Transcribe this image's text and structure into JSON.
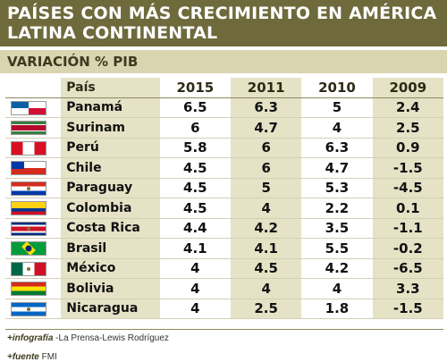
{
  "header": {
    "title_line1": "PAÍSES CON MÁS CRECIMIENTO EN AMÉRICA",
    "title_line2": "LATINA CONTINENTAL",
    "subtitle": "VARIACIÓN % PIB"
  },
  "table": {
    "columns": [
      "País",
      "2015",
      "2011",
      "2010",
      "2009"
    ],
    "rows": [
      {
        "country": "Panamá",
        "flag": "panama-flag",
        "v2015": "6.5",
        "v2011": "6.3",
        "v2010": "5",
        "v2009": "2.4"
      },
      {
        "country": "Surinam",
        "flag": "suriname-flag",
        "v2015": "6",
        "v2011": "4.7",
        "v2010": "4",
        "v2009": "2.5"
      },
      {
        "country": "Perú",
        "flag": "peru-flag",
        "v2015": "5.8",
        "v2011": "6",
        "v2010": "6.3",
        "v2009": "0.9"
      },
      {
        "country": "Chile",
        "flag": "chile-flag",
        "v2015": "4.5",
        "v2011": "6",
        "v2010": "4.7",
        "v2009": "-1.5"
      },
      {
        "country": "Paraguay",
        "flag": "paraguay-flag",
        "v2015": "4.5",
        "v2011": "5",
        "v2010": "5.3",
        "v2009": "-4.5"
      },
      {
        "country": "Colombia",
        "flag": "colombia-flag",
        "v2015": "4.5",
        "v2011": "4",
        "v2010": "2.2",
        "v2009": "0.1"
      },
      {
        "country": "Costa Rica",
        "flag": "costa-rica-flag",
        "v2015": "4.4",
        "v2011": "4.2",
        "v2010": "3.5",
        "v2009": "-1.1"
      },
      {
        "country": "Brasil",
        "flag": "brazil-flag",
        "v2015": "4.1",
        "v2011": "4.1",
        "v2010": "5.5",
        "v2009": "-0.2"
      },
      {
        "country": "México",
        "flag": "mexico-flag",
        "v2015": "4",
        "v2011": "4.5",
        "v2010": "4.2",
        "v2009": "-6.5"
      },
      {
        "country": "Bolivia",
        "flag": "bolivia-flag",
        "v2015": "4",
        "v2011": "4",
        "v2010": "4",
        "v2009": "3.3"
      },
      {
        "country": "Nicaragua",
        "flag": "nicaragua-flag",
        "v2015": "4",
        "v2011": "2.5",
        "v2010": "1.8",
        "v2009": "-1.5"
      }
    ]
  },
  "footer": {
    "infografia_label": "+infografía",
    "infografia_text": " -La Prensa-Lewis Rodríguez",
    "fuente_label": "+fuente",
    "fuente_text": " FMI"
  },
  "colors": {
    "title_bg": "#6f6a3c",
    "subtitle_bg": "#d9d5b1",
    "shade": "#e5e2c6"
  }
}
